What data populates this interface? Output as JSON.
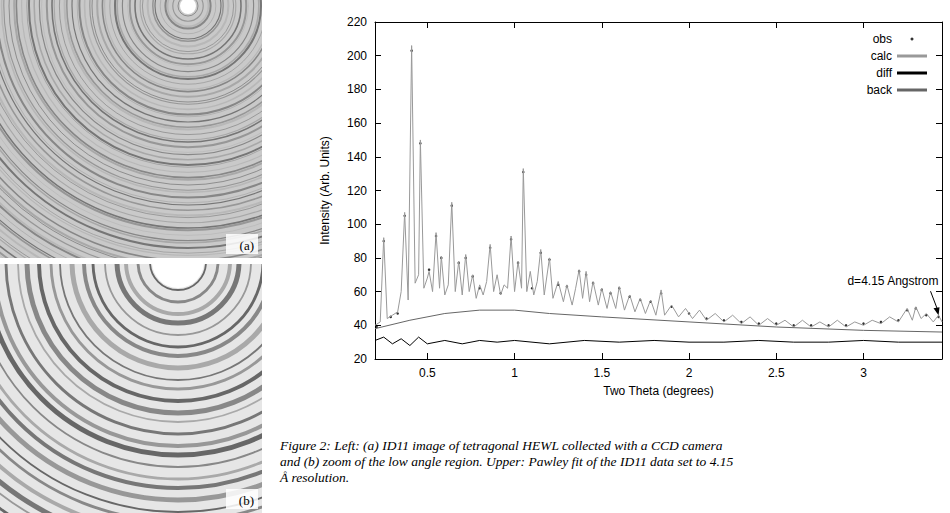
{
  "chart_data": {
    "type": "line",
    "x_label": "Two Theta (degrees)",
    "y_label": "Intensity (Arb. Units)",
    "xlim": [
      0.2,
      3.45
    ],
    "xticks": [
      0.5,
      1,
      1.5,
      2,
      2.5,
      3
    ],
    "ylim": [
      20,
      220
    ],
    "yticks": [
      20,
      40,
      60,
      80,
      100,
      120,
      140,
      160,
      180,
      200,
      220
    ],
    "grid": false,
    "legend": "top-right",
    "series": [
      {
        "name": "obs",
        "type": "scatter",
        "marker": "dot",
        "color": "#000000",
        "x": [
          0.21,
          0.25,
          0.29,
          0.33,
          0.37,
          0.41,
          0.46,
          0.51,
          0.55,
          0.58,
          0.64,
          0.68,
          0.72,
          0.76,
          0.8,
          0.86,
          0.92,
          0.98,
          1.02,
          1.05,
          1.1,
          1.15,
          1.2,
          1.25,
          1.3,
          1.37,
          1.41,
          1.45,
          1.5,
          1.55,
          1.6,
          1.66,
          1.72,
          1.78,
          1.84,
          1.9,
          2.0,
          2.1,
          2.2,
          2.3,
          2.4,
          2.5,
          2.6,
          2.7,
          2.8,
          2.9,
          3.0,
          3.1,
          3.2,
          3.25,
          3.3,
          3.36,
          3.43
        ],
        "values": [
          39,
          90,
          45,
          47,
          105,
          203,
          148,
          73,
          93,
          80,
          111,
          77,
          80,
          69,
          62,
          86,
          59,
          91,
          77,
          131,
          62,
          83,
          79,
          64,
          63,
          72,
          70,
          65,
          61,
          59,
          62,
          57,
          55,
          54,
          59,
          51,
          47,
          44,
          43,
          42,
          41,
          41,
          40,
          40,
          40,
          40,
          41,
          42,
          43,
          49,
          50,
          46,
          45
        ]
      },
      {
        "name": "calc",
        "type": "line",
        "marker": "none",
        "line_style": "solid",
        "color": "#999999",
        "x": [
          0.2,
          0.23,
          0.25,
          0.27,
          0.3,
          0.33,
          0.35,
          0.37,
          0.39,
          0.41,
          0.43,
          0.45,
          0.46,
          0.48,
          0.5,
          0.51,
          0.53,
          0.55,
          0.57,
          0.58,
          0.6,
          0.62,
          0.64,
          0.66,
          0.68,
          0.7,
          0.72,
          0.74,
          0.76,
          0.78,
          0.8,
          0.82,
          0.84,
          0.86,
          0.88,
          0.9,
          0.92,
          0.94,
          0.96,
          0.98,
          1.0,
          1.02,
          1.04,
          1.05,
          1.07,
          1.09,
          1.11,
          1.13,
          1.15,
          1.17,
          1.2,
          1.22,
          1.25,
          1.28,
          1.3,
          1.33,
          1.35,
          1.37,
          1.39,
          1.41,
          1.43,
          1.45,
          1.48,
          1.5,
          1.53,
          1.55,
          1.58,
          1.6,
          1.63,
          1.66,
          1.69,
          1.72,
          1.75,
          1.78,
          1.81,
          1.84,
          1.86,
          1.9,
          1.94,
          1.98,
          2.02,
          2.06,
          2.1,
          2.15,
          2.2,
          2.25,
          2.3,
          2.35,
          2.4,
          2.45,
          2.5,
          2.55,
          2.6,
          2.65,
          2.7,
          2.75,
          2.8,
          2.85,
          2.9,
          2.95,
          3.0,
          3.05,
          3.1,
          3.15,
          3.2,
          3.25,
          3.28,
          3.3,
          3.33,
          3.36,
          3.4,
          3.43,
          3.45
        ],
        "values": [
          40,
          42,
          92,
          44,
          46,
          48,
          60,
          107,
          55,
          206,
          65,
          70,
          150,
          62,
          68,
          72,
          60,
          95,
          62,
          81,
          58,
          64,
          113,
          60,
          78,
          58,
          82,
          60,
          70,
          56,
          64,
          58,
          66,
          88,
          60,
          70,
          58,
          64,
          62,
          93,
          60,
          78,
          62,
          133,
          60,
          72,
          58,
          66,
          85,
          58,
          80,
          56,
          66,
          54,
          64,
          52,
          62,
          73,
          56,
          72,
          54,
          66,
          52,
          62,
          50,
          60,
          50,
          63,
          49,
          58,
          48,
          56,
          47,
          55,
          46,
          61,
          46,
          52,
          45,
          50,
          44,
          49,
          43,
          47,
          42,
          46,
          41,
          45,
          40,
          44,
          40,
          43,
          39,
          43,
          39,
          42,
          39,
          43,
          39,
          42,
          40,
          43,
          41,
          45,
          42,
          50,
          43,
          51,
          44,
          47,
          42,
          46,
          42
        ]
      },
      {
        "name": "diff",
        "type": "line",
        "marker": "none",
        "line_style": "solid",
        "color": "#000000",
        "x": [
          0.2,
          0.25,
          0.3,
          0.35,
          0.4,
          0.45,
          0.5,
          0.6,
          0.7,
          0.8,
          0.9,
          1.0,
          1.2,
          1.4,
          1.6,
          1.8,
          2.0,
          2.2,
          2.4,
          2.6,
          2.8,
          3.0,
          3.2,
          3.45
        ],
        "values": [
          31,
          33,
          29,
          32,
          28,
          33,
          29,
          31,
          29,
          31,
          30,
          31,
          29,
          31,
          30,
          31,
          30,
          30,
          31,
          30,
          30,
          31,
          30,
          30
        ]
      },
      {
        "name": "back",
        "type": "line",
        "marker": "none",
        "line_style": "solid",
        "color": "#666666",
        "x": [
          0.2,
          0.4,
          0.6,
          0.8,
          1.0,
          1.2,
          1.5,
          2.0,
          2.5,
          3.0,
          3.45
        ],
        "values": [
          38,
          43,
          47,
          49,
          49,
          47,
          45,
          42,
          39,
          37,
          36
        ]
      }
    ],
    "annotations": [
      {
        "text": "d=4.15 Angstrom",
        "x": 3.43,
        "y": 46
      }
    ]
  },
  "images": [
    {
      "label": "(a)"
    },
    {
      "label": "(b)"
    }
  ],
  "caption": "Figure 2:  Left:  (a) ID11 image of tetragonal HEWL collected with a CCD camera and (b) zoom of the low angle region. Upper: Pawley fit of the ID11 data set to 4.15 Å resolution."
}
